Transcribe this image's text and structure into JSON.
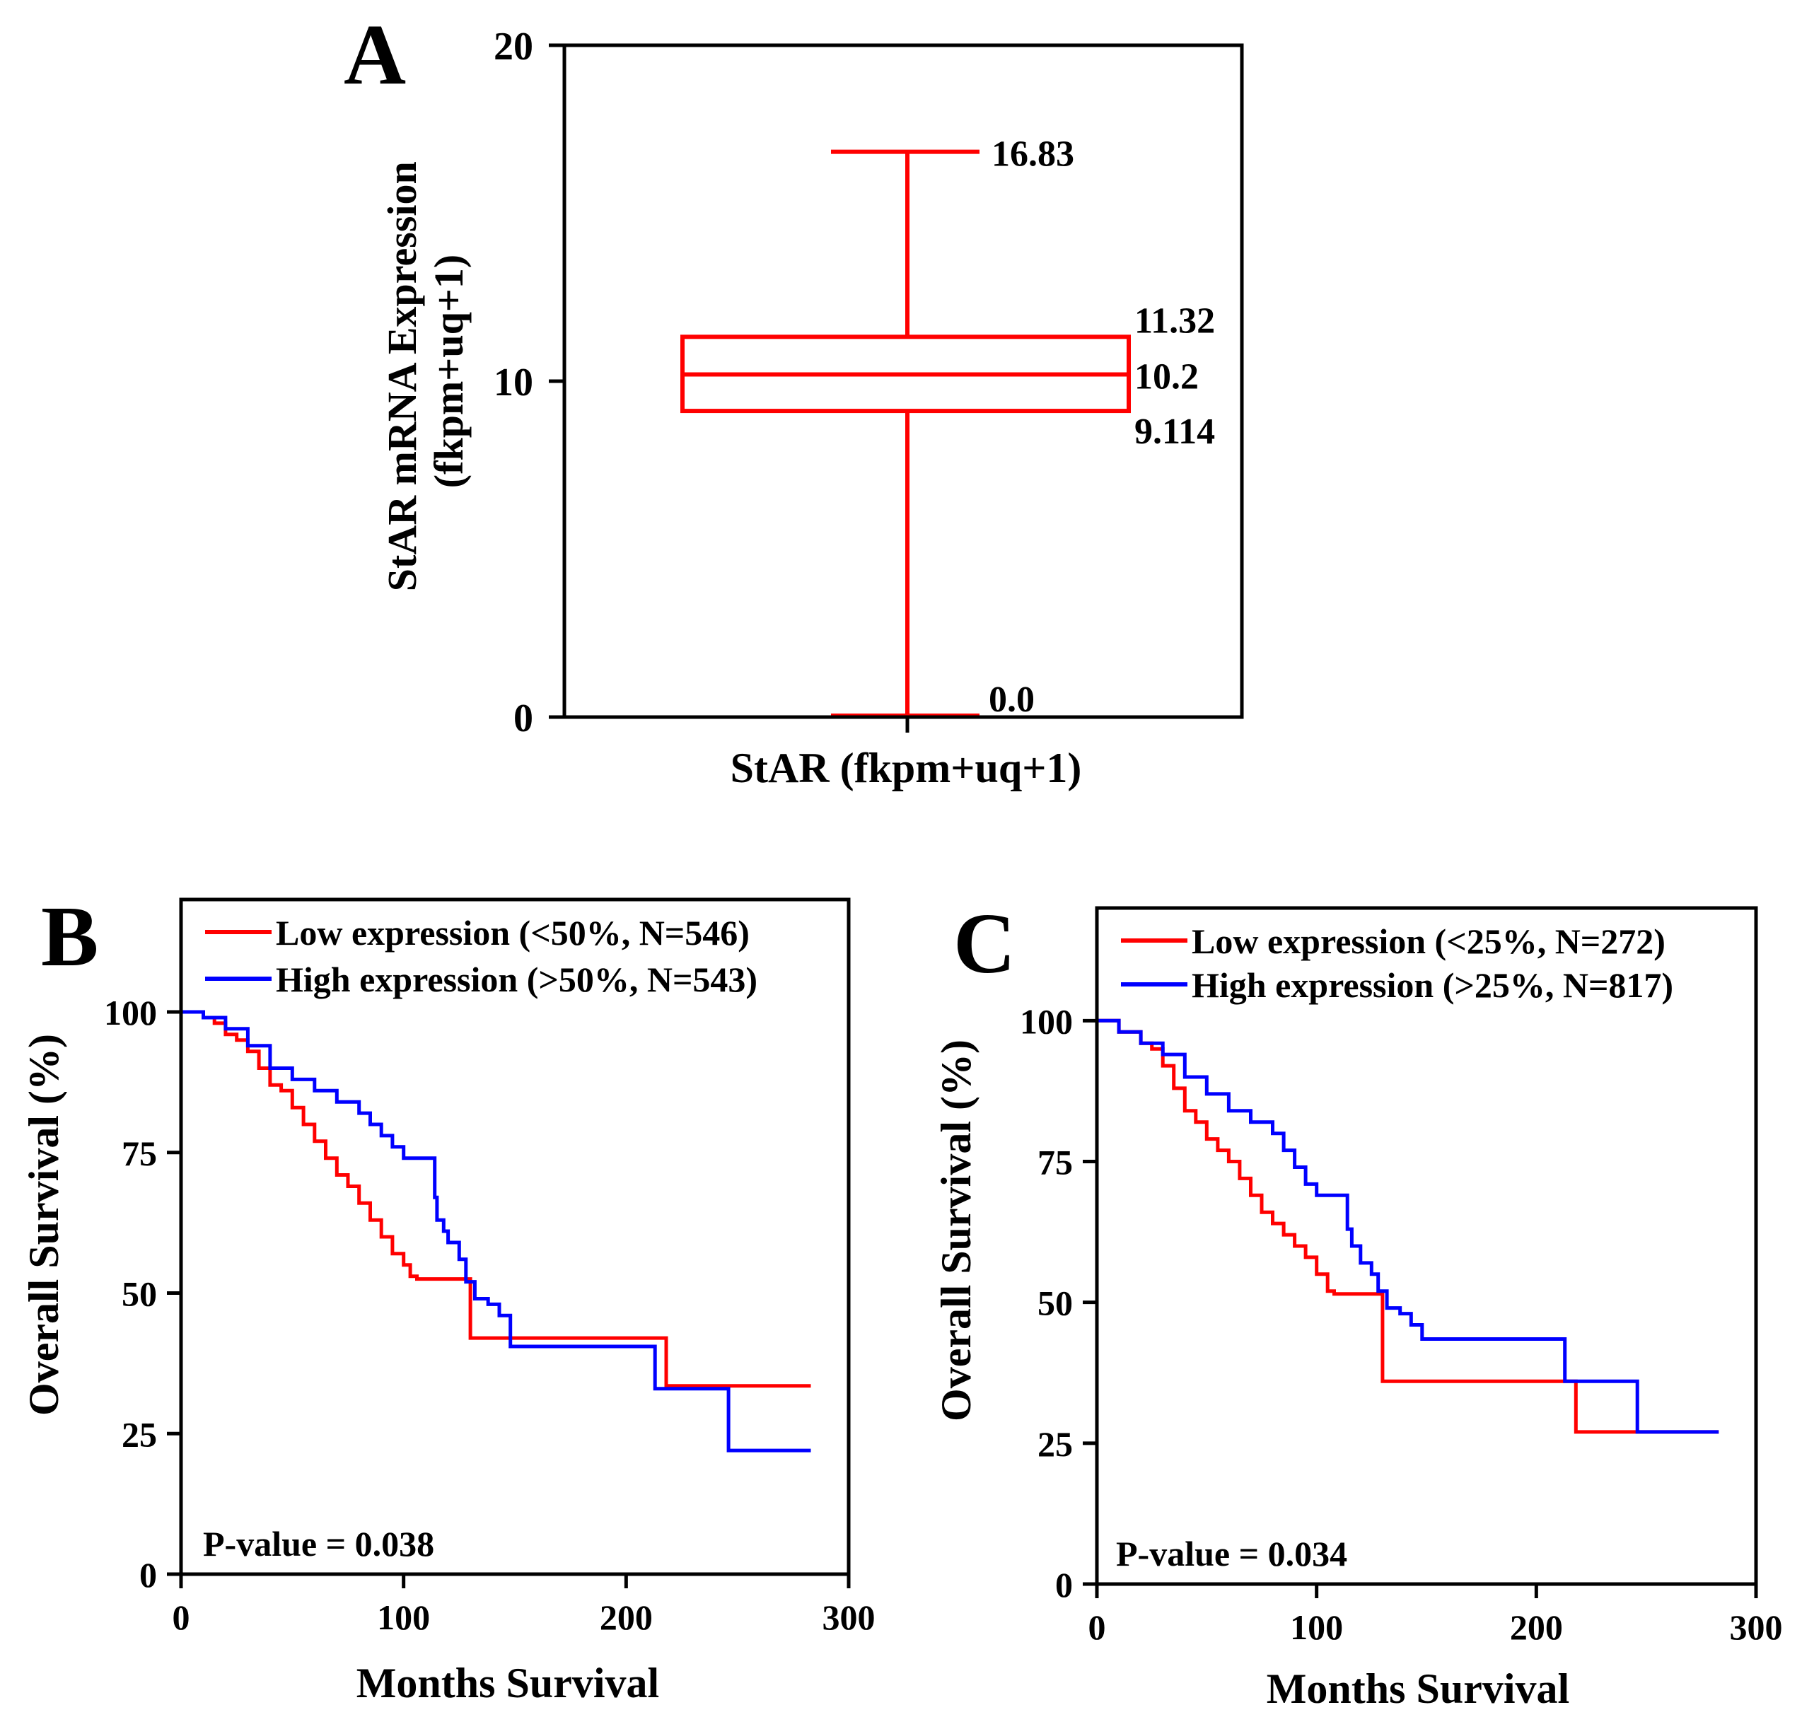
{
  "chart_data": [
    {
      "panel": "A",
      "type": "box",
      "ylabel": "StAR mRNA Expression (fkpm+uq+1)",
      "ylabel_lines": [
        "StAR mRNA Expression",
        "(fkpm+uq+1)"
      ],
      "xlabel": "StAR (fkpm+uq+1)",
      "ylim": [
        0,
        20
      ],
      "yticks": [
        0,
        10,
        20
      ],
      "ytick_labels": [
        "0",
        "10",
        "20"
      ],
      "colors": {
        "box": "#ff0000"
      },
      "box": {
        "min": 0.0,
        "q1": 9.114,
        "median": 10.2,
        "q3": 11.32,
        "max": 16.83
      },
      "annotations": {
        "max": "16.83",
        "q3": "11.32",
        "median": "10.2",
        "q1": "9.114",
        "min": "0.0"
      }
    },
    {
      "panel": "B",
      "type": "line",
      "subtype": "kaplan-meier",
      "xlabel": "Months Survival",
      "ylabel": "Overall Survival (%)",
      "xlim": [
        0,
        300
      ],
      "ylim": [
        0,
        120
      ],
      "xticks": [
        0,
        100,
        200,
        300
      ],
      "xtick_labels": [
        "0",
        "100",
        "200",
        "300"
      ],
      "yticks": [
        0,
        25,
        50,
        75,
        100
      ],
      "ytick_labels": [
        "0",
        "25",
        "50",
        "75",
        "100"
      ],
      "pvalue_label": "P-value = 0.038",
      "legend_position": "top",
      "series": [
        {
          "name": "Low expression (<50%, N=546)",
          "color": "#ff0000",
          "x": [
            0,
            5,
            10,
            15,
            20,
            25,
            30,
            35,
            40,
            45,
            50,
            55,
            60,
            65,
            70,
            75,
            80,
            85,
            90,
            95,
            100,
            103,
            106,
            110,
            115,
            125,
            128,
            130,
            150,
            200,
            217,
            218,
            240,
            283
          ],
          "y": [
            100,
            100,
            99,
            98,
            96,
            95,
            93,
            90,
            87,
            86,
            83,
            80,
            77,
            74,
            71,
            69,
            66,
            63,
            60,
            57,
            55,
            53,
            52.5,
            52.5,
            52.5,
            52.5,
            52.5,
            42,
            42,
            42,
            42,
            33.5,
            33.5,
            33.5
          ]
        },
        {
          "name": "High expression (>50%, N=543)",
          "color": "#0000ff",
          "x": [
            0,
            5,
            10,
            20,
            30,
            40,
            50,
            60,
            70,
            80,
            85,
            90,
            95,
            100,
            110,
            113,
            114,
            115,
            118,
            120,
            125,
            128,
            132,
            138,
            143,
            148,
            200,
            212,
            213,
            240,
            245,
            246,
            283
          ],
          "y": [
            100,
            100,
            99,
            97,
            94,
            90,
            88,
            86,
            84,
            82,
            80,
            78,
            76,
            74,
            74,
            74,
            67,
            63,
            61,
            59,
            56,
            52,
            49,
            48,
            46,
            40.5,
            40.5,
            40.5,
            33,
            33,
            33,
            22,
            22
          ]
        }
      ]
    },
    {
      "panel": "C",
      "type": "line",
      "subtype": "kaplan-meier",
      "xlabel": "Months Survival",
      "ylabel": "Overall Survival (%)",
      "xlim": [
        0,
        300
      ],
      "ylim": [
        0,
        120
      ],
      "xticks": [
        0,
        100,
        200,
        300
      ],
      "xtick_labels": [
        "0",
        "100",
        "200",
        "300"
      ],
      "yticks": [
        0,
        25,
        50,
        75,
        100
      ],
      "ytick_labels": [
        "0",
        "25",
        "50",
        "75",
        "100"
      ],
      "pvalue_label": "P-value = 0.034",
      "legend_position": "top",
      "series": [
        {
          "name": "Low expression (<25%, N=272)",
          "color": "#ff0000",
          "x": [
            0,
            5,
            10,
            20,
            25,
            30,
            35,
            40,
            45,
            50,
            55,
            60,
            65,
            70,
            75,
            80,
            85,
            90,
            95,
            100,
            105,
            108,
            110,
            128,
            130,
            150,
            200,
            217,
            218,
            240,
            283
          ],
          "y": [
            100,
            100,
            98,
            96,
            95,
            92,
            88,
            84,
            82,
            79,
            77,
            75,
            72,
            69,
            66,
            64,
            62,
            60,
            58,
            55,
            52,
            51.5,
            51.5,
            51.5,
            36,
            36,
            36,
            36,
            27,
            27,
            27
          ]
        },
        {
          "name": "High expression (>25%, N=817)",
          "color": "#0000ff",
          "x": [
            0,
            5,
            10,
            20,
            30,
            40,
            50,
            60,
            70,
            80,
            85,
            90,
            95,
            100,
            110,
            113,
            114,
            116,
            120,
            125,
            128,
            132,
            138,
            143,
            148,
            200,
            212,
            213,
            240,
            245,
            246,
            283
          ],
          "y": [
            100,
            100,
            98,
            96,
            94,
            90,
            87,
            84,
            82,
            80,
            77,
            74,
            71,
            69,
            69,
            69,
            63,
            60,
            57,
            55,
            52,
            49,
            48,
            46,
            43.5,
            43.5,
            43.5,
            36,
            36,
            36,
            27,
            27
          ]
        }
      ]
    }
  ]
}
